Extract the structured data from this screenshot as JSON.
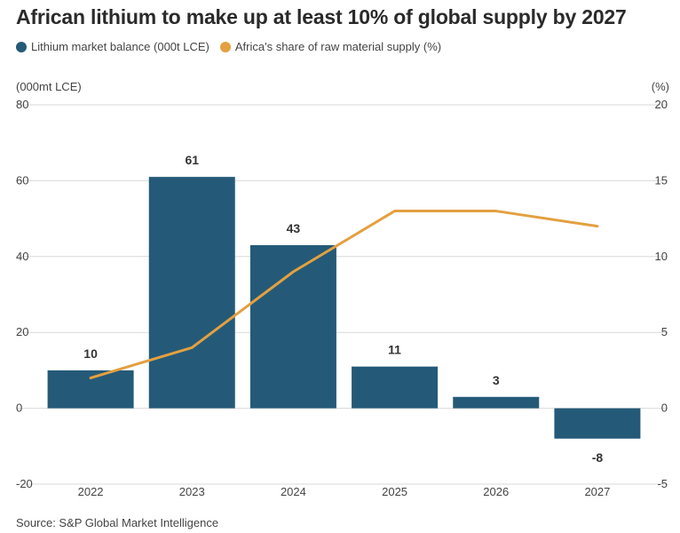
{
  "title": "African lithium to make up at least 10% of global supply by 2027",
  "legend": {
    "bar_label": "Lithium market balance (000t LCE)",
    "line_label": "Africa's share of raw material supply (%)"
  },
  "left_unit": "(000mt LCE)",
  "right_unit": "(%)",
  "source": "Source: S&P Global Market Intelligence",
  "colors": {
    "bar": "#245a78",
    "line": "#e3a040",
    "grid": "#d9d9d9"
  },
  "chart_data": {
    "type": "bar",
    "categories": [
      "2022",
      "2023",
      "2024",
      "2025",
      "2026",
      "2027"
    ],
    "series": [
      {
        "name": "Lithium market balance (000t LCE)",
        "type": "bar",
        "axis": "left",
        "values": [
          10,
          61,
          43,
          11,
          3,
          -8
        ]
      },
      {
        "name": "Africa's share of raw material supply (%)",
        "type": "line",
        "axis": "right",
        "values": [
          2,
          4,
          9,
          13,
          13,
          12
        ]
      }
    ],
    "ylim_left": [
      -20,
      80
    ],
    "yticks_left": [
      "80",
      "60",
      "40",
      "20",
      "0",
      "-20"
    ],
    "ylim_right": [
      -5,
      20
    ],
    "yticks_right": [
      "20",
      "15",
      "10",
      "5",
      "0",
      "-5"
    ],
    "data_labels": [
      "10",
      "61",
      "43",
      "11",
      "3",
      "-8"
    ],
    "grid": true,
    "legend_position": "top-left"
  }
}
